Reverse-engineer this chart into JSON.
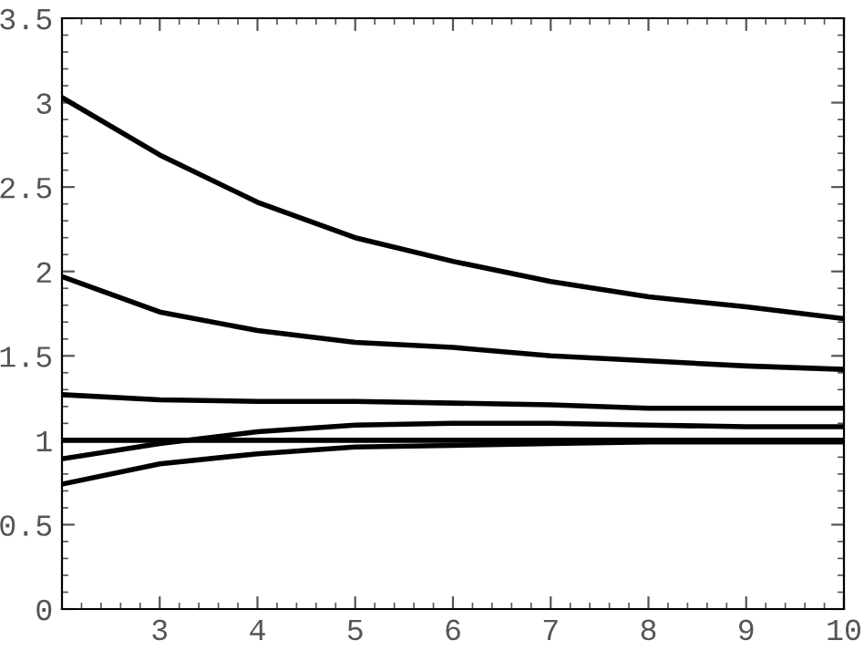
{
  "chart_data": {
    "type": "line",
    "x": [
      2,
      3,
      4,
      5,
      6,
      7,
      8,
      9,
      10
    ],
    "series": [
      {
        "color": "#000000",
        "values": [
          3.03,
          2.69,
          2.41,
          2.2,
          2.06,
          1.94,
          1.85,
          1.79,
          1.72
        ]
      },
      {
        "color": "#000000",
        "values": [
          1.97,
          1.76,
          1.65,
          1.58,
          1.55,
          1.5,
          1.47,
          1.44,
          1.42
        ]
      },
      {
        "color": "#000000",
        "values": [
          1.27,
          1.24,
          1.23,
          1.23,
          1.22,
          1.21,
          1.19,
          1.19,
          1.19
        ]
      },
      {
        "color": "#000000",
        "values": [
          1.0,
          1.0,
          1.0,
          1.0,
          1.0,
          1.0,
          1.0,
          1.0,
          1.0
        ]
      },
      {
        "color": "#000000",
        "values": [
          0.89,
          0.98,
          1.05,
          1.09,
          1.1,
          1.1,
          1.09,
          1.08,
          1.08
        ]
      },
      {
        "color": "#000000",
        "values": [
          0.74,
          0.86,
          0.92,
          0.96,
          0.97,
          0.98,
          0.99,
          0.99,
          0.99
        ]
      }
    ],
    "xlim": [
      2,
      10
    ],
    "ylim": [
      0,
      3.5
    ],
    "xticks": [
      3,
      4,
      5,
      6,
      7,
      8,
      9,
      10
    ],
    "yticks": [
      0,
      0.5,
      1,
      1.5,
      2,
      2.5,
      3,
      3.5
    ],
    "grid": false,
    "legend": false,
    "marker": "none",
    "line_style": "solid"
  }
}
